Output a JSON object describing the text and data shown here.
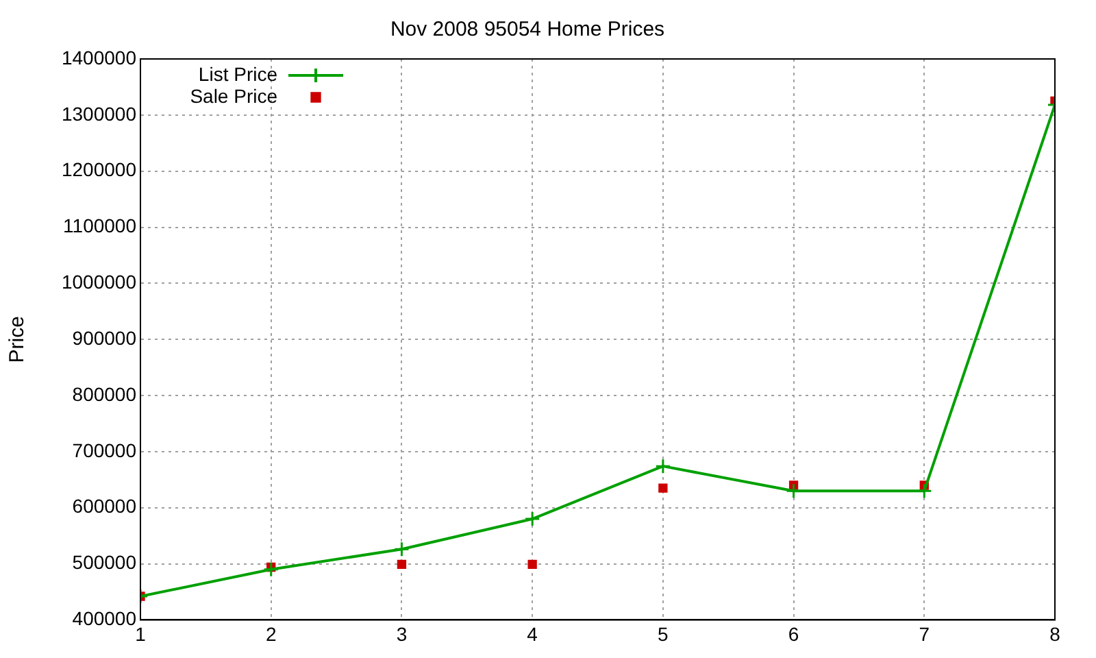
{
  "chart_data": {
    "type": "line",
    "title": "Nov 2008 95054 Home Prices",
    "ylabel": "Price",
    "x": [
      1,
      2,
      3,
      4,
      5,
      6,
      7,
      8
    ],
    "series": [
      {
        "name": "List Price",
        "color": "#00a000",
        "marker": "cross",
        "values": [
          442000,
          490000,
          526000,
          580000,
          674000,
          630000,
          630000,
          1318000
        ]
      },
      {
        "name": "Sale Price",
        "type": "scatter",
        "color": "#cc0000",
        "marker": "square",
        "values": [
          442000,
          494000,
          499000,
          499000,
          635000,
          640000,
          640000,
          1325000
        ]
      }
    ],
    "xlim": [
      1,
      8
    ],
    "xticks": [
      1,
      2,
      3,
      4,
      5,
      6,
      7,
      8
    ],
    "ylim": [
      400000,
      1400000
    ],
    "yticks": [
      400000,
      500000,
      600000,
      700000,
      800000,
      900000,
      1000000,
      1100000,
      1200000,
      1300000,
      1400000
    ],
    "grid": true,
    "legend": "top left"
  }
}
